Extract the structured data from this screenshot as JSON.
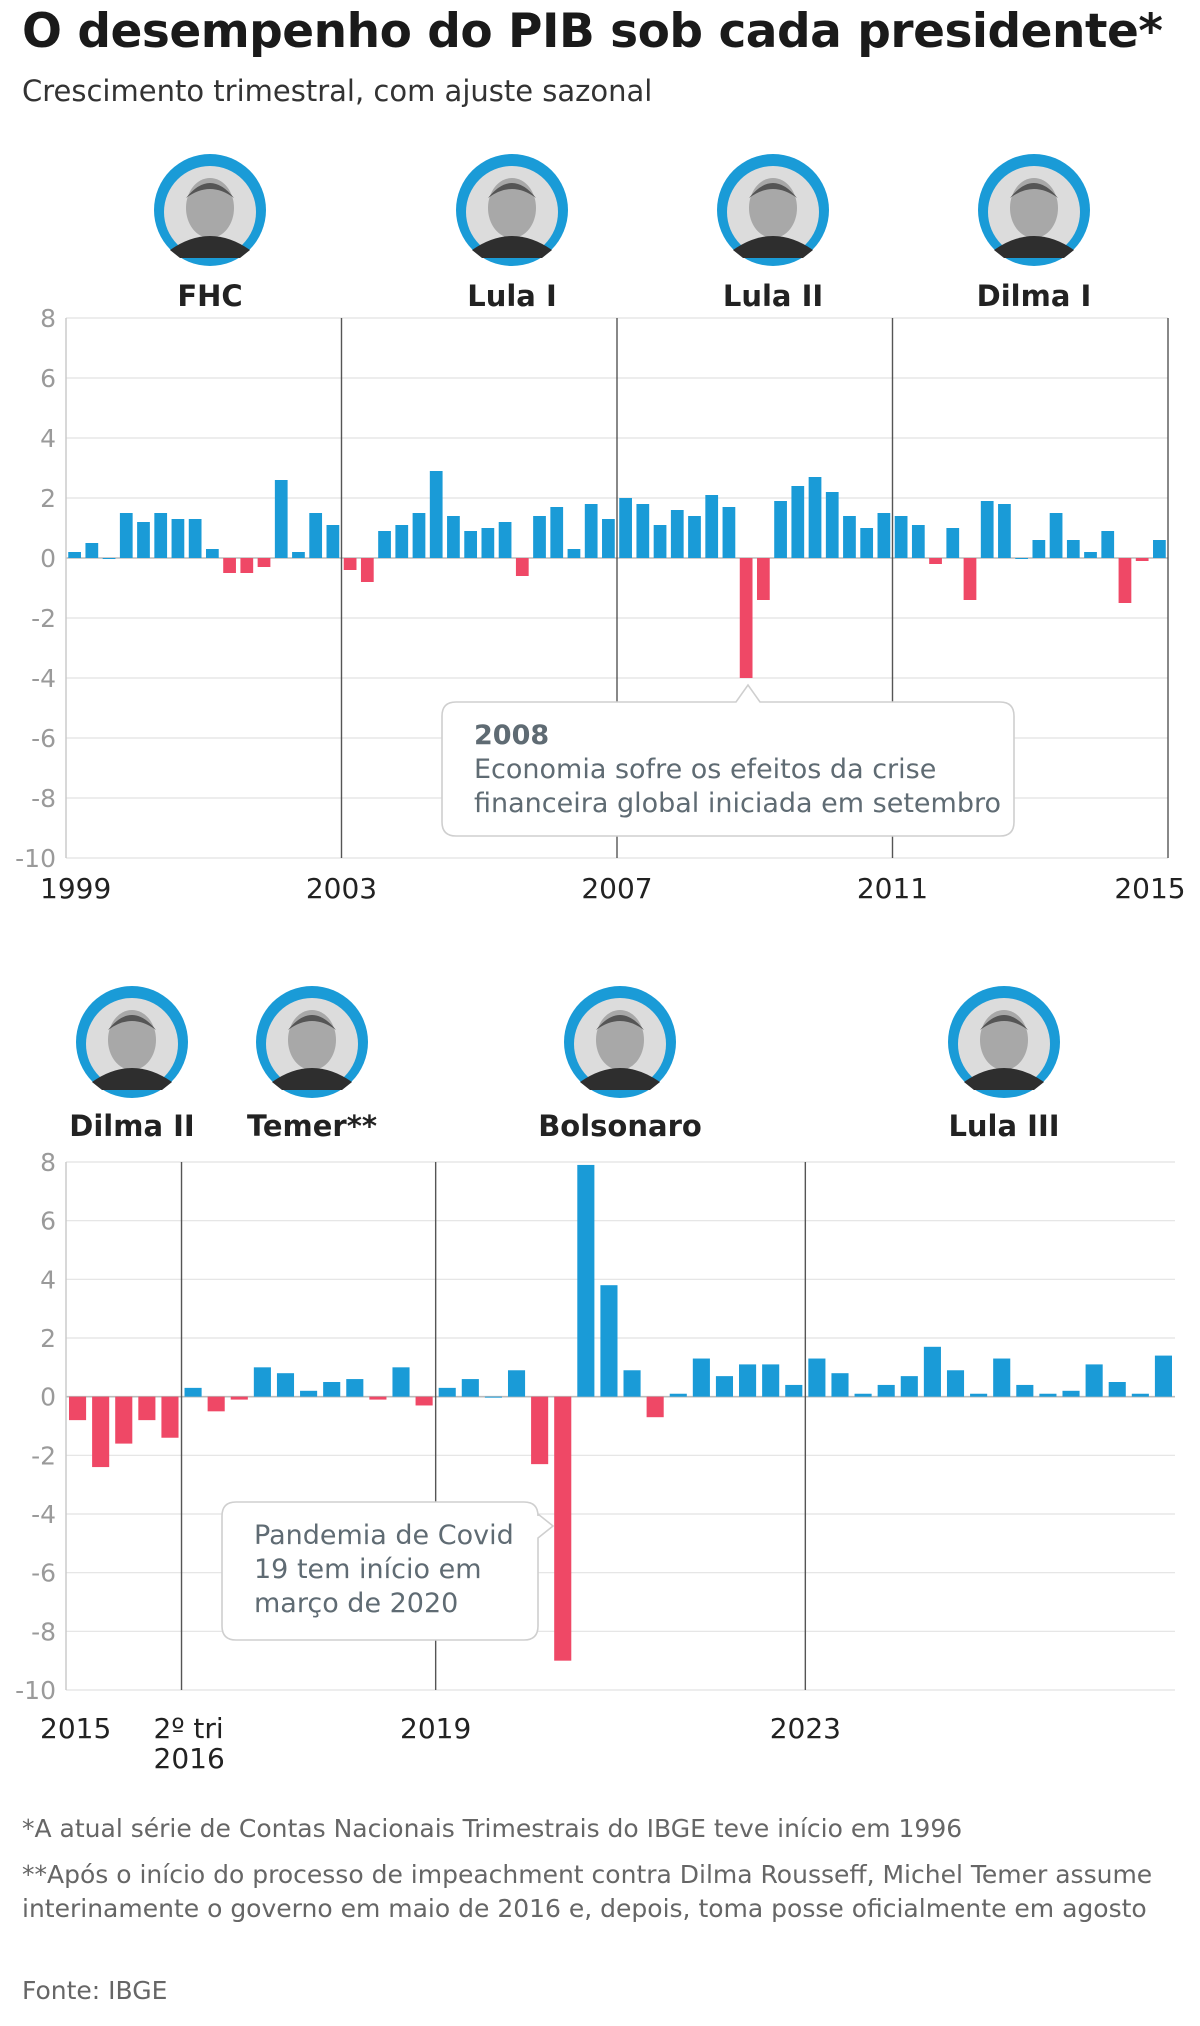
{
  "title": "O desempenho do PIB sob cada presidente*",
  "subtitle": "Crescimento trimestral, com ajuste sazonal",
  "colors": {
    "positive": "#1a9bd7",
    "negative": "#ef4866",
    "avatar_ring": "#1a9bd7"
  },
  "chart_data": [
    {
      "type": "bar",
      "ylim": [
        -10,
        8
      ],
      "y_ticks": [
        "8",
        "6",
        "4",
        "2",
        "0",
        "-2",
        "-4",
        "-6",
        "-8",
        "-10"
      ],
      "x_labels": [
        {
          "text": "1999",
          "q": 0
        },
        {
          "text": "2003",
          "q": 16
        },
        {
          "text": "2007",
          "q": 32
        },
        {
          "text": "2011",
          "q": 48
        },
        {
          "text": "2015",
          "q": 63
        }
      ],
      "presidents": [
        {
          "name": "FHC",
          "icon": "fhc-avatar-icon"
        },
        {
          "name": "Lula I",
          "icon": "lula-avatar-icon"
        },
        {
          "name": "Lula II",
          "icon": "lula-avatar-icon"
        },
        {
          "name": "Dilma I",
          "icon": "dilma-avatar-icon"
        }
      ],
      "annotation": {
        "title": "2008",
        "lines": [
          "Economia sofre os efeitos da crise",
          "financeira global iniciada em setembro"
        ]
      },
      "series": [
        {
          "values": [
            0.2,
            0.5,
            0.0,
            1.5,
            1.2,
            1.5,
            1.3,
            1.3,
            0.3,
            -0.5,
            -0.5,
            -0.3,
            2.6,
            0.2,
            1.5,
            1.1,
            -0.4,
            -0.8,
            0.9,
            1.1,
            1.5,
            2.9,
            1.4,
            0.9,
            1.0,
            1.2,
            -0.6,
            1.4,
            1.7,
            0.3,
            1.8,
            1.3,
            2.0,
            1.8,
            1.1,
            1.6,
            1.4,
            2.1,
            1.7,
            -4.0,
            -1.4,
            1.9,
            2.4,
            2.7,
            2.2,
            1.4,
            1.0,
            1.5,
            1.4,
            1.1,
            -0.2,
            1.0,
            -1.4,
            1.9,
            1.8,
            0.0,
            0.6,
            1.5,
            0.6,
            0.2,
            0.9,
            -1.5,
            -0.1,
            0.6
          ]
        }
      ]
    },
    {
      "type": "bar",
      "ylim": [
        -10,
        8
      ],
      "y_ticks": [
        "8",
        "6",
        "4",
        "2",
        "0",
        "-2",
        "-4",
        "-6",
        "-8",
        "-10"
      ],
      "x_labels": [
        {
          "text": "2015",
          "q": 0
        },
        {
          "text": "2º tri",
          "text2": "2016",
          "q": 5
        },
        {
          "text": "2019",
          "q": 16
        },
        {
          "text": "2023",
          "q": 32
        }
      ],
      "presidents": [
        {
          "name": "Dilma II",
          "icon": "dilma-avatar-icon"
        },
        {
          "name": "Temer**",
          "icon": "temer-avatar-icon"
        },
        {
          "name": "Bolsonaro",
          "icon": "bolsonaro-avatar-icon"
        },
        {
          "name": "Lula III",
          "icon": "lula-avatar-icon"
        }
      ],
      "annotation": {
        "title": "",
        "lines": [
          "Pandemia de Covid",
          "19 tem início em",
          "março de 2020"
        ]
      },
      "series": [
        {
          "values": [
            -0.8,
            -2.4,
            -1.6,
            -0.8,
            -1.4,
            0.3,
            -0.5,
            -0.1,
            1.0,
            0.8,
            0.2,
            0.5,
            0.6,
            -0.1,
            1.0,
            -0.3,
            0.3,
            0.6,
            0.0,
            0.9,
            -2.3,
            -9.0,
            7.9,
            3.8,
            0.9,
            -0.7,
            0.1,
            1.3,
            0.7,
            1.1,
            1.1,
            0.4,
            1.3,
            0.8,
            0.1,
            0.4,
            0.7,
            1.7,
            0.9,
            0.1,
            1.3,
            0.4,
            0.1,
            0.2,
            1.1,
            0.5,
            0.1,
            1.4
          ]
        }
      ]
    }
  ],
  "notes": [
    "*A atual série de Contas Nacionais Trimestrais do IBGE teve início em 1996",
    "**Após o início do processo de impeachment contra Dilma Rousseff, Michel Temer assume interinamente o governo em maio de 2016 e, depois, toma posse oficialmente em agosto"
  ],
  "source": "Fonte: IBGE"
}
